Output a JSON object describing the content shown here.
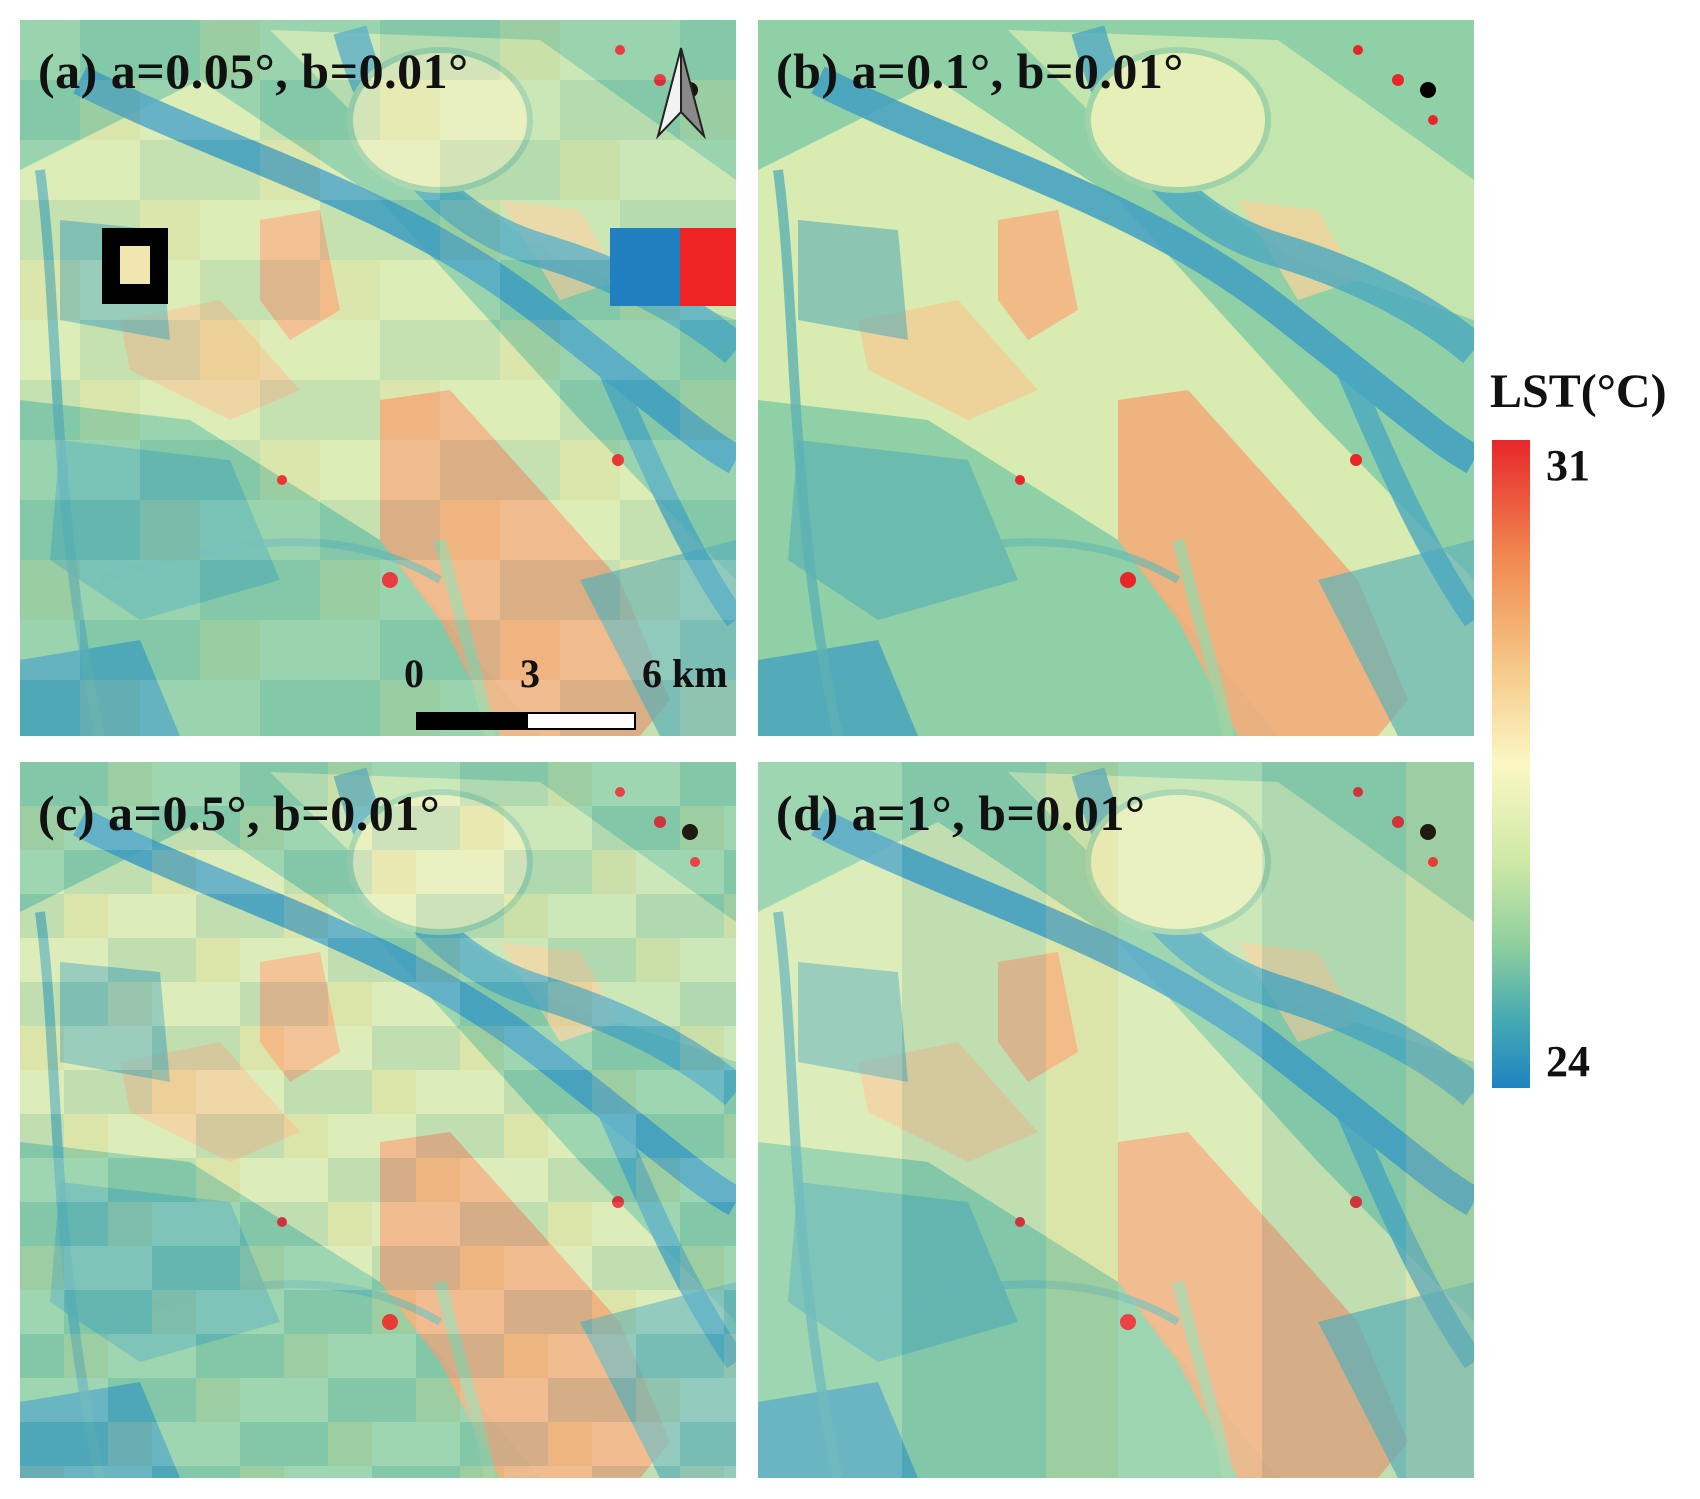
{
  "panels": [
    {
      "id": "a",
      "label": "(a) a=0.05°, b=0.01°",
      "blockiness": "fine"
    },
    {
      "id": "b",
      "label": "(b) a=0.1°, b=0.01°",
      "blockiness": "smooth"
    },
    {
      "id": "c",
      "label": "(c) a=0.5°, b=0.01°",
      "blockiness": "medium"
    },
    {
      "id": "d",
      "label": "(d) a=1°, b=0.01°",
      "blockiness": "coarse"
    }
  ],
  "north_arrow": {
    "icon": "north-arrow-icon"
  },
  "scale_bar": {
    "ticks": [
      "0",
      "3",
      "6 km"
    ]
  },
  "legend": {
    "title": "LST(°C)",
    "max_label": "31",
    "min_label": "24",
    "colors": [
      "#e8262a",
      "#f08850",
      "#f6c887",
      "#fbf7c4",
      "#cfe9a6",
      "#8ecf9e",
      "#43a8b4",
      "#1f83c0"
    ]
  }
}
